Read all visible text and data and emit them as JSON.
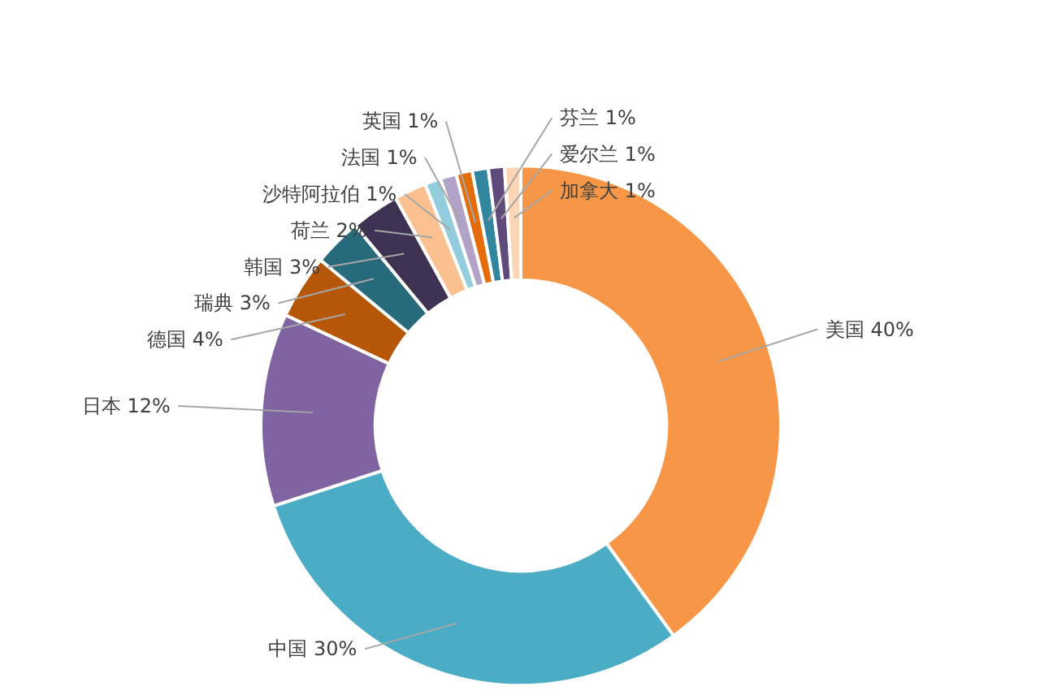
{
  "chart_data": {
    "type": "donut",
    "categories": [
      "美国",
      "中国",
      "日本",
      "德国",
      "瑞典",
      "韩国",
      "荷兰",
      "沙特阿拉伯",
      "法国",
      "英国",
      "芬兰",
      "爱尔兰",
      "加拿大"
    ],
    "values": [
      40,
      30,
      12,
      4,
      3,
      3,
      2,
      1,
      1,
      1,
      1,
      1,
      1
    ],
    "value_labels": [
      "40%",
      "30%",
      "12%",
      "4%",
      "3%",
      "3%",
      "2%",
      "1%",
      "1%",
      "1%",
      "1%",
      "1%",
      "1%"
    ],
    "colors": [
      "#f79646",
      "#4bacc6",
      "#8064a2",
      "#b65708",
      "#276a7c",
      "#3f3151",
      "#fac090",
      "#93cddd",
      "#b3a2c7",
      "#e46c0a",
      "#31859c",
      "#604a7b",
      "#fcd5b5"
    ]
  }
}
